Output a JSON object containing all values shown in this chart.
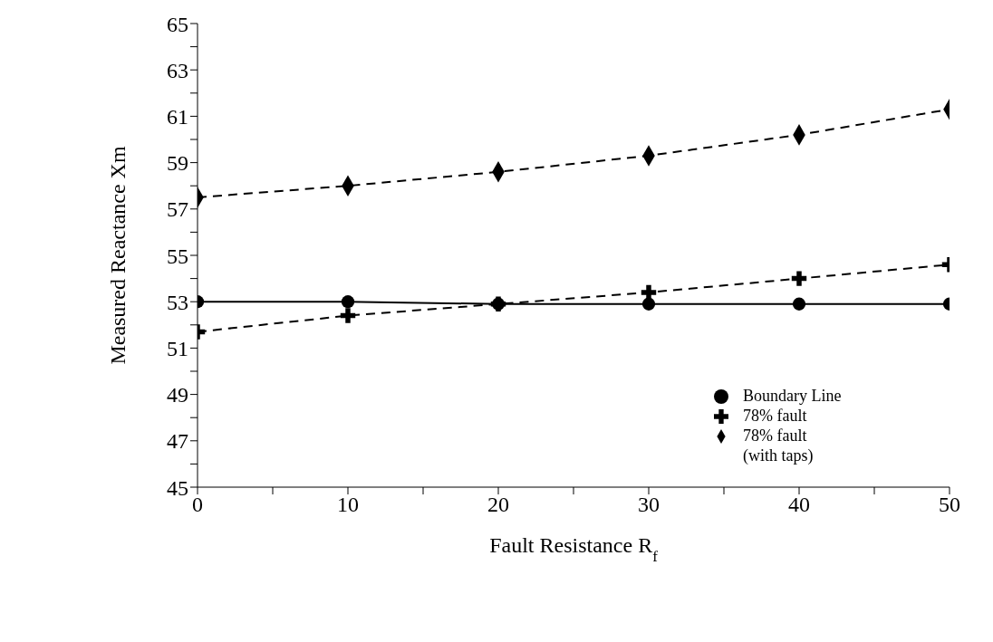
{
  "chart_data": {
    "type": "line",
    "xlabel": "Fault Resistance R$_{f}$",
    "ylabel": "Measured Reactance Xm",
    "x": [
      0,
      10,
      20,
      30,
      40,
      50
    ],
    "series": [
      {
        "name": "Boundary Line",
        "color": "#000000",
        "values": [
          53.0,
          53.0,
          52.9,
          52.9,
          52.9,
          52.9
        ],
        "marker": "circle",
        "line_style": "solid"
      },
      {
        "name": "78% fault",
        "color": "#000000",
        "values": [
          51.7,
          52.4,
          52.9,
          53.4,
          54.0,
          54.6
        ],
        "marker": "cross",
        "line_style": "dashed"
      },
      {
        "name": "78% fault (with taps)",
        "color": "#000000",
        "values": [
          57.5,
          58.0,
          58.6,
          59.3,
          60.2,
          61.3
        ],
        "marker": "diamond",
        "line_style": "dashed"
      }
    ],
    "xlim": [
      0,
      50
    ],
    "xticks": [
      0,
      {
        "value": 5,
        "label": null
      },
      10,
      {
        "value": 15,
        "label": null
      },
      20,
      {
        "value": 25,
        "label": null
      },
      30,
      {
        "value": 35,
        "label": null
      },
      40,
      {
        "value": 45,
        "label": null
      },
      50
    ],
    "ylim": [
      45,
      65
    ],
    "yticks": [
      45,
      {
        "value": 46,
        "label": null
      },
      47,
      {
        "value": 48,
        "label": null
      },
      49,
      {
        "value": 50,
        "label": null
      },
      51,
      {
        "value": 52,
        "label": null
      },
      53,
      {
        "value": 54,
        "label": null
      },
      55,
      {
        "value": 56,
        "label": null
      },
      57,
      {
        "value": 58,
        "label": null
      },
      59,
      {
        "value": 60,
        "label": null
      },
      61,
      {
        "value": 62,
        "label": null
      },
      63,
      {
        "value": 64,
        "label": null
      },
      65
    ],
    "grid": false,
    "legend": "bottom right"
  }
}
